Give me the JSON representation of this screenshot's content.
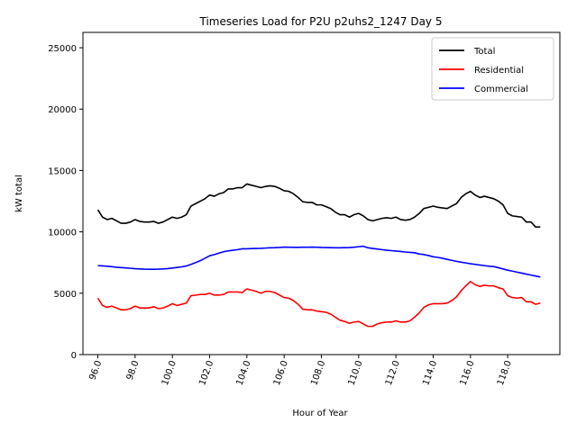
{
  "chart_data": {
    "type": "line",
    "title": "Timeseries Load for P2U p2uhs2_1247  Day 5",
    "xlabel": "Hour of Year",
    "ylabel": "kW total",
    "xlim": [
      95.2,
      120.8
    ],
    "ylim": [
      0,
      26250
    ],
    "x_ticks": [
      96,
      98,
      100,
      102,
      104,
      106,
      108,
      110,
      112,
      114,
      116,
      118
    ],
    "x_tick_labels": [
      "96.0",
      "98.0",
      "100.0",
      "102.0",
      "104.0",
      "106.0",
      "108.0",
      "110.0",
      "112.0",
      "114.0",
      "116.0",
      "118.0"
    ],
    "y_ticks": [
      0,
      5000,
      10000,
      15000,
      20000,
      25000
    ],
    "y_tick_labels": [
      "0",
      "5000",
      "10000",
      "15000",
      "20000",
      "25000"
    ],
    "legend_position": "top-right",
    "x": [
      96.0,
      96.25,
      96.5,
      96.75,
      97.0,
      97.25,
      97.5,
      97.75,
      98.0,
      98.25,
      98.5,
      98.75,
      99.0,
      99.25,
      99.5,
      99.75,
      100.0,
      100.25,
      100.5,
      100.75,
      101.0,
      101.25,
      101.5,
      101.75,
      102.0,
      102.25,
      102.5,
      102.75,
      103.0,
      103.25,
      103.5,
      103.75,
      104.0,
      104.25,
      104.5,
      104.75,
      105.0,
      105.25,
      105.5,
      105.75,
      106.0,
      106.25,
      106.5,
      106.75,
      107.0,
      107.25,
      107.5,
      107.75,
      108.0,
      108.25,
      108.5,
      108.75,
      109.0,
      109.25,
      109.5,
      109.75,
      110.0,
      110.25,
      110.5,
      110.75,
      111.0,
      111.25,
      111.5,
      111.75,
      112.0,
      112.25,
      112.5,
      112.75,
      113.0,
      113.25,
      113.5,
      113.75,
      114.0,
      114.25,
      114.5,
      114.75,
      115.0,
      115.25,
      115.5,
      115.75,
      116.0,
      116.25,
      116.5,
      116.75,
      117.0,
      117.25,
      117.5,
      117.75,
      118.0,
      118.25,
      118.5,
      118.75,
      119.0,
      119.25,
      119.5,
      119.75
    ],
    "series": [
      {
        "name": "Total",
        "color": "#000000",
        "values": [
          11800,
          11200,
          11000,
          11100,
          10900,
          10700,
          10700,
          10800,
          11000,
          10850,
          10800,
          10800,
          10850,
          10700,
          10800,
          11000,
          11200,
          11100,
          11200,
          11400,
          12100,
          12300,
          12500,
          12700,
          13000,
          12900,
          13100,
          13200,
          13500,
          13500,
          13600,
          13600,
          13900,
          13800,
          13700,
          13600,
          13700,
          13750,
          13700,
          13550,
          13350,
          13300,
          13100,
          12800,
          12450,
          12400,
          12400,
          12200,
          12200,
          12050,
          11900,
          11600,
          11400,
          11400,
          11200,
          11400,
          11500,
          11300,
          11000,
          10900,
          11000,
          11100,
          11150,
          11100,
          11200,
          11000,
          10950,
          11000,
          11200,
          11500,
          11900,
          12000,
          12100,
          12000,
          11950,
          11900,
          12100,
          12300,
          12800,
          13100,
          13300,
          13000,
          12800,
          12900,
          12800,
          12700,
          12500,
          12200,
          11500,
          11300,
          11250,
          11200,
          10800,
          10800,
          10400,
          10400
        ]
      },
      {
        "name": "Residential",
        "color": "#ff0000",
        "values": [
          4600,
          4000,
          3850,
          3950,
          3800,
          3650,
          3650,
          3750,
          3950,
          3800,
          3800,
          3800,
          3900,
          3750,
          3800,
          3950,
          4150,
          4000,
          4100,
          4200,
          4800,
          4850,
          4900,
          4900,
          5000,
          4850,
          4850,
          4900,
          5100,
          5100,
          5100,
          5050,
          5350,
          5250,
          5150,
          5000,
          5150,
          5150,
          5050,
          4850,
          4650,
          4600,
          4400,
          4100,
          3700,
          3650,
          3650,
          3550,
          3500,
          3450,
          3300,
          3050,
          2800,
          2700,
          2550,
          2650,
          2700,
          2500,
          2300,
          2300,
          2500,
          2600,
          2650,
          2650,
          2750,
          2650,
          2650,
          2750,
          3050,
          3400,
          3850,
          4050,
          4150,
          4150,
          4150,
          4200,
          4400,
          4700,
          5200,
          5600,
          5950,
          5700,
          5550,
          5650,
          5600,
          5600,
          5450,
          5350,
          4800,
          4650,
          4600,
          4650,
          4300,
          4300,
          4100,
          4200
        ]
      },
      {
        "name": "Commercial",
        "color": "#0000ff",
        "values": [
          7250,
          7230,
          7200,
          7160,
          7120,
          7090,
          7060,
          7030,
          7000,
          6980,
          6960,
          6950,
          6950,
          6960,
          6980,
          7010,
          7050,
          7100,
          7150,
          7220,
          7350,
          7500,
          7650,
          7850,
          8050,
          8150,
          8270,
          8380,
          8450,
          8500,
          8550,
          8620,
          8620,
          8640,
          8650,
          8660,
          8680,
          8700,
          8710,
          8730,
          8760,
          8750,
          8740,
          8740,
          8750,
          8750,
          8760,
          8750,
          8730,
          8720,
          8710,
          8700,
          8700,
          8710,
          8720,
          8750,
          8790,
          8830,
          8700,
          8650,
          8600,
          8550,
          8500,
          8470,
          8440,
          8400,
          8360,
          8330,
          8300,
          8200,
          8150,
          8070,
          7970,
          7920,
          7850,
          7760,
          7680,
          7600,
          7530,
          7470,
          7400,
          7350,
          7300,
          7250,
          7200,
          7170,
          7080,
          6980,
          6880,
          6800,
          6720,
          6640,
          6560,
          6480,
          6400,
          6320
        ]
      }
    ]
  }
}
